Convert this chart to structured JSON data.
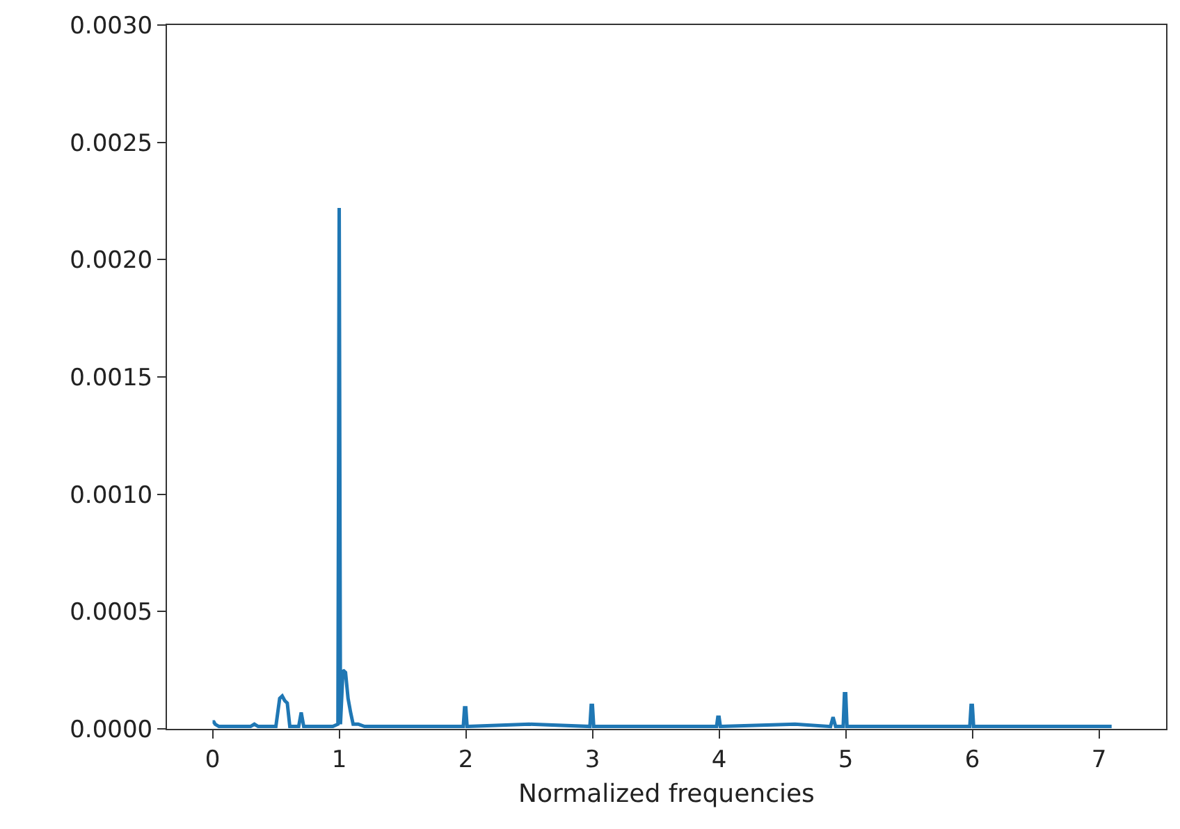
{
  "chart_data": {
    "type": "line",
    "xlabel": "Normalized frequencies",
    "x": [
      0,
      0.01,
      0.02,
      0.05,
      0.1,
      0.3,
      0.33,
      0.36,
      0.5,
      0.53,
      0.55,
      0.57,
      0.59,
      0.61,
      0.68,
      0.7,
      0.72,
      0.74,
      0.95,
      0.99,
      1.0,
      1.01,
      1.03,
      1.05,
      1.07,
      1.09,
      1.11,
      1.15,
      1.2,
      1.3,
      1.98,
      1.99,
      2.0,
      2.01,
      2.02,
      2.5,
      2.98,
      2.99,
      3.0,
      3.01,
      3.02,
      3.2,
      3.98,
      3.99,
      4.0,
      4.01,
      4.02,
      4.6,
      4.88,
      4.9,
      4.92,
      4.98,
      4.99,
      5.0,
      5.01,
      5.02,
      5.98,
      5.99,
      6.0,
      6.01,
      6.02,
      7.1
    ],
    "values": [
      3e-05,
      3e-05,
      2e-05,
      1e-05,
      1e-05,
      1e-05,
      2e-05,
      1e-05,
      1e-05,
      0.00013,
      0.00014,
      0.00012,
      0.00011,
      1e-05,
      1e-05,
      7e-05,
      1e-05,
      1e-05,
      1e-05,
      2e-05,
      0.00222,
      2e-05,
      0.00025,
      0.00024,
      0.00013,
      7e-05,
      2e-05,
      2e-05,
      1e-05,
      1e-05,
      1e-05,
      9e-05,
      9e-05,
      1e-05,
      1e-05,
      2e-05,
      1e-05,
      0.0001,
      0.0001,
      1e-05,
      1e-05,
      1e-05,
      1e-05,
      5e-05,
      5e-05,
      1e-05,
      1e-05,
      2e-05,
      1e-05,
      5e-05,
      1e-05,
      1e-05,
      0.00015,
      0.00015,
      1e-05,
      1e-05,
      1e-05,
      0.0001,
      0.0001,
      1e-05,
      1e-05,
      1e-05
    ],
    "color": "#1f77b4",
    "line_style": "solid",
    "marker": "none",
    "xlim": [
      -0.36,
      7.53
    ],
    "xticks": [
      0,
      1,
      2,
      3,
      4,
      5,
      6,
      7
    ],
    "ylim": [
      0,
      0.003
    ],
    "yticks": [
      {
        "value": 0,
        "label": "0.0000"
      },
      {
        "value": 0.0005,
        "label": "0.0005"
      },
      {
        "value": 0.001,
        "label": "0.0010"
      },
      {
        "value": 0.0015,
        "label": "0.0015"
      },
      {
        "value": 0.002,
        "label": "0.0020"
      },
      {
        "value": 0.0025,
        "label": "0.0025"
      },
      {
        "value": 0.003,
        "label": "0.0030"
      }
    ]
  }
}
